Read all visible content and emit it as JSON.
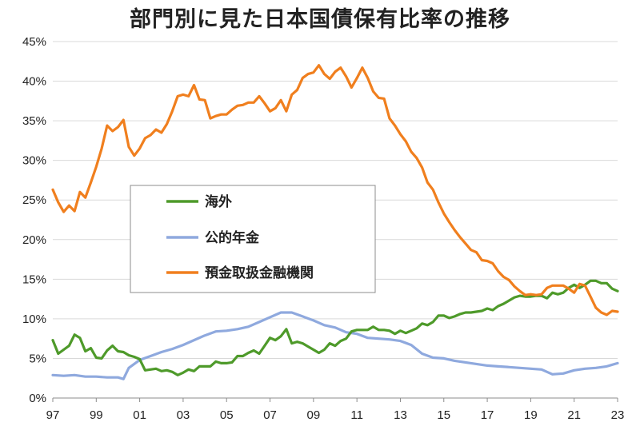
{
  "chart_data": {
    "type": "line",
    "title": "部門別に見た日本国債保有比率の推移",
    "xlabel": "",
    "ylabel": "",
    "x_ticks": [
      "97",
      "99",
      "01",
      "03",
      "05",
      "07",
      "09",
      "11",
      "13",
      "15",
      "17",
      "19",
      "21",
      "23"
    ],
    "y_ticks": [
      "0%",
      "5%",
      "10%",
      "15%",
      "20%",
      "25%",
      "30%",
      "35%",
      "40%",
      "45%"
    ],
    "xlim": [
      1997.0,
      2023.0
    ],
    "ylim": [
      0,
      45
    ],
    "grid": "horizontal",
    "legend_position": "center-left",
    "series": [
      {
        "name": "海外",
        "color": "#4e9a2a",
        "points": [
          [
            1997.0,
            7.3
          ],
          [
            1997.25,
            5.6
          ],
          [
            1997.5,
            6.1
          ],
          [
            1997.75,
            6.6
          ],
          [
            1998.0,
            8.0
          ],
          [
            1998.25,
            7.6
          ],
          [
            1998.5,
            5.9
          ],
          [
            1998.75,
            6.3
          ],
          [
            1999.0,
            5.1
          ],
          [
            1999.25,
            5.0
          ],
          [
            1999.5,
            6.0
          ],
          [
            1999.75,
            6.6
          ],
          [
            2000.0,
            5.9
          ],
          [
            2000.25,
            5.8
          ],
          [
            2000.5,
            5.4
          ],
          [
            2000.75,
            5.2
          ],
          [
            2001.0,
            4.9
          ],
          [
            2001.25,
            3.5
          ],
          [
            2001.5,
            3.6
          ],
          [
            2001.75,
            3.7
          ],
          [
            2002.0,
            3.4
          ],
          [
            2002.25,
            3.5
          ],
          [
            2002.5,
            3.3
          ],
          [
            2002.75,
            2.9
          ],
          [
            2003.0,
            3.2
          ],
          [
            2003.25,
            3.6
          ],
          [
            2003.5,
            3.4
          ],
          [
            2003.75,
            4.0
          ],
          [
            2004.0,
            4.0
          ],
          [
            2004.25,
            4.0
          ],
          [
            2004.5,
            4.6
          ],
          [
            2004.75,
            4.4
          ],
          [
            2005.0,
            4.4
          ],
          [
            2005.25,
            4.5
          ],
          [
            2005.5,
            5.3
          ],
          [
            2005.75,
            5.3
          ],
          [
            2006.0,
            5.7
          ],
          [
            2006.25,
            6.0
          ],
          [
            2006.5,
            5.6
          ],
          [
            2006.75,
            6.6
          ],
          [
            2007.0,
            7.6
          ],
          [
            2007.25,
            7.3
          ],
          [
            2007.5,
            7.8
          ],
          [
            2007.75,
            8.7
          ],
          [
            2008.0,
            6.9
          ],
          [
            2008.25,
            7.1
          ],
          [
            2008.5,
            6.9
          ],
          [
            2008.75,
            6.5
          ],
          [
            2009.0,
            6.1
          ],
          [
            2009.25,
            5.7
          ],
          [
            2009.5,
            6.1
          ],
          [
            2009.75,
            6.9
          ],
          [
            2010.0,
            6.6
          ],
          [
            2010.25,
            7.2
          ],
          [
            2010.5,
            7.5
          ],
          [
            2010.75,
            8.4
          ],
          [
            2011.0,
            8.6
          ],
          [
            2011.25,
            8.6
          ],
          [
            2011.5,
            8.6
          ],
          [
            2011.75,
            9.0
          ],
          [
            2012.0,
            8.6
          ],
          [
            2012.25,
            8.6
          ],
          [
            2012.5,
            8.5
          ],
          [
            2012.75,
            8.1
          ],
          [
            2013.0,
            8.5
          ],
          [
            2013.25,
            8.2
          ],
          [
            2013.5,
            8.5
          ],
          [
            2013.75,
            8.8
          ],
          [
            2014.0,
            9.4
          ],
          [
            2014.25,
            9.2
          ],
          [
            2014.5,
            9.6
          ],
          [
            2014.75,
            10.4
          ],
          [
            2015.0,
            10.4
          ],
          [
            2015.25,
            10.1
          ],
          [
            2015.5,
            10.3
          ],
          [
            2015.75,
            10.6
          ],
          [
            2016.0,
            10.8
          ],
          [
            2016.25,
            10.8
          ],
          [
            2016.5,
            10.9
          ],
          [
            2016.75,
            11.0
          ],
          [
            2017.0,
            11.3
          ],
          [
            2017.25,
            11.1
          ],
          [
            2017.5,
            11.6
          ],
          [
            2017.75,
            11.9
          ],
          [
            2018.0,
            12.3
          ],
          [
            2018.25,
            12.7
          ],
          [
            2018.5,
            12.9
          ],
          [
            2018.75,
            12.8
          ],
          [
            2019.0,
            12.8
          ],
          [
            2019.25,
            12.9
          ],
          [
            2019.5,
            12.9
          ],
          [
            2019.75,
            12.6
          ],
          [
            2020.0,
            13.3
          ],
          [
            2020.25,
            13.1
          ],
          [
            2020.5,
            13.3
          ],
          [
            2020.75,
            13.9
          ],
          [
            2021.0,
            14.3
          ],
          [
            2021.25,
            13.9
          ],
          [
            2021.5,
            14.3
          ],
          [
            2021.75,
            14.8
          ],
          [
            2022.0,
            14.8
          ],
          [
            2022.25,
            14.5
          ],
          [
            2022.5,
            14.5
          ],
          [
            2022.75,
            13.8
          ],
          [
            2023.0,
            13.5
          ]
        ]
      },
      {
        "name": "公的年金",
        "color": "#8fa9de",
        "points": [
          [
            1997.0,
            2.9
          ],
          [
            1997.5,
            2.8
          ],
          [
            1998.0,
            2.9
          ],
          [
            1998.5,
            2.7
          ],
          [
            1999.0,
            2.7
          ],
          [
            1999.5,
            2.6
          ],
          [
            2000.0,
            2.6
          ],
          [
            2000.25,
            2.4
          ],
          [
            2000.5,
            3.8
          ],
          [
            2001.0,
            4.8
          ],
          [
            2001.5,
            5.3
          ],
          [
            2002.0,
            5.8
          ],
          [
            2002.5,
            6.2
          ],
          [
            2003.0,
            6.7
          ],
          [
            2003.5,
            7.3
          ],
          [
            2004.0,
            7.9
          ],
          [
            2004.5,
            8.4
          ],
          [
            2005.0,
            8.5
          ],
          [
            2005.5,
            8.7
          ],
          [
            2006.0,
            9.0
          ],
          [
            2006.5,
            9.6
          ],
          [
            2007.0,
            10.2
          ],
          [
            2007.5,
            10.8
          ],
          [
            2008.0,
            10.8
          ],
          [
            2008.5,
            10.3
          ],
          [
            2009.0,
            9.8
          ],
          [
            2009.5,
            9.2
          ],
          [
            2010.0,
            8.9
          ],
          [
            2010.5,
            8.3
          ],
          [
            2011.0,
            8.1
          ],
          [
            2011.5,
            7.6
          ],
          [
            2012.0,
            7.5
          ],
          [
            2012.5,
            7.4
          ],
          [
            2013.0,
            7.2
          ],
          [
            2013.5,
            6.7
          ],
          [
            2014.0,
            5.6
          ],
          [
            2014.5,
            5.1
          ],
          [
            2015.0,
            5.0
          ],
          [
            2015.5,
            4.7
          ],
          [
            2016.0,
            4.5
          ],
          [
            2016.5,
            4.3
          ],
          [
            2017.0,
            4.1
          ],
          [
            2017.5,
            4.0
          ],
          [
            2018.0,
            3.9
          ],
          [
            2018.5,
            3.8
          ],
          [
            2019.0,
            3.7
          ],
          [
            2019.5,
            3.6
          ],
          [
            2020.0,
            3.0
          ],
          [
            2020.5,
            3.1
          ],
          [
            2021.0,
            3.5
          ],
          [
            2021.5,
            3.7
          ],
          [
            2022.0,
            3.8
          ],
          [
            2022.5,
            4.0
          ],
          [
            2023.0,
            4.4
          ]
        ]
      },
      {
        "name": "預金取扱金融機関",
        "color": "#f07f1e",
        "points": [
          [
            1997.0,
            26.3
          ],
          [
            1997.25,
            24.7
          ],
          [
            1997.5,
            23.5
          ],
          [
            1997.75,
            24.3
          ],
          [
            1998.0,
            23.6
          ],
          [
            1998.25,
            26.0
          ],
          [
            1998.5,
            25.3
          ],
          [
            1998.75,
            27.2
          ],
          [
            1999.0,
            29.2
          ],
          [
            1999.25,
            31.5
          ],
          [
            1999.5,
            34.4
          ],
          [
            1999.75,
            33.7
          ],
          [
            2000.0,
            34.2
          ],
          [
            2000.25,
            35.1
          ],
          [
            2000.5,
            31.7
          ],
          [
            2000.75,
            30.6
          ],
          [
            2001.0,
            31.5
          ],
          [
            2001.25,
            32.8
          ],
          [
            2001.5,
            33.2
          ],
          [
            2001.75,
            33.9
          ],
          [
            2002.0,
            33.5
          ],
          [
            2002.25,
            34.6
          ],
          [
            2002.5,
            36.2
          ],
          [
            2002.75,
            38.1
          ],
          [
            2003.0,
            38.3
          ],
          [
            2003.25,
            38.1
          ],
          [
            2003.5,
            39.5
          ],
          [
            2003.75,
            37.7
          ],
          [
            2004.0,
            37.6
          ],
          [
            2004.25,
            35.3
          ],
          [
            2004.5,
            35.6
          ],
          [
            2004.75,
            35.8
          ],
          [
            2005.0,
            35.8
          ],
          [
            2005.25,
            36.4
          ],
          [
            2005.5,
            36.9
          ],
          [
            2005.75,
            37.0
          ],
          [
            2006.0,
            37.3
          ],
          [
            2006.25,
            37.3
          ],
          [
            2006.5,
            38.1
          ],
          [
            2006.75,
            37.2
          ],
          [
            2007.0,
            36.2
          ],
          [
            2007.25,
            36.6
          ],
          [
            2007.5,
            37.6
          ],
          [
            2007.75,
            36.2
          ],
          [
            2008.0,
            38.3
          ],
          [
            2008.25,
            38.9
          ],
          [
            2008.5,
            40.4
          ],
          [
            2008.75,
            40.9
          ],
          [
            2009.0,
            41.1
          ],
          [
            2009.25,
            42.0
          ],
          [
            2009.5,
            40.9
          ],
          [
            2009.75,
            40.3
          ],
          [
            2010.0,
            41.2
          ],
          [
            2010.25,
            41.7
          ],
          [
            2010.5,
            40.6
          ],
          [
            2010.75,
            39.2
          ],
          [
            2011.0,
            40.4
          ],
          [
            2011.25,
            41.7
          ],
          [
            2011.5,
            40.4
          ],
          [
            2011.75,
            38.7
          ],
          [
            2012.0,
            37.9
          ],
          [
            2012.25,
            37.8
          ],
          [
            2012.5,
            35.3
          ],
          [
            2012.75,
            34.4
          ],
          [
            2013.0,
            33.3
          ],
          [
            2013.25,
            32.4
          ],
          [
            2013.5,
            31.1
          ],
          [
            2013.75,
            30.3
          ],
          [
            2014.0,
            29.1
          ],
          [
            2014.25,
            27.2
          ],
          [
            2014.5,
            26.3
          ],
          [
            2014.75,
            24.7
          ],
          [
            2015.0,
            23.3
          ],
          [
            2015.25,
            22.2
          ],
          [
            2015.5,
            21.2
          ],
          [
            2015.75,
            20.3
          ],
          [
            2016.0,
            19.5
          ],
          [
            2016.25,
            18.7
          ],
          [
            2016.5,
            18.4
          ],
          [
            2016.75,
            17.4
          ],
          [
            2017.0,
            17.3
          ],
          [
            2017.25,
            17.0
          ],
          [
            2017.5,
            16.0
          ],
          [
            2017.75,
            15.3
          ],
          [
            2018.0,
            14.9
          ],
          [
            2018.25,
            14.1
          ],
          [
            2018.5,
            13.5
          ],
          [
            2018.75,
            13.0
          ],
          [
            2019.0,
            13.1
          ],
          [
            2019.25,
            13.0
          ],
          [
            2019.5,
            13.1
          ],
          [
            2019.75,
            13.9
          ],
          [
            2020.0,
            14.2
          ],
          [
            2020.25,
            14.2
          ],
          [
            2020.5,
            14.2
          ],
          [
            2020.75,
            13.8
          ],
          [
            2021.0,
            13.3
          ],
          [
            2021.25,
            14.4
          ],
          [
            2021.5,
            14.2
          ],
          [
            2021.75,
            12.8
          ],
          [
            2022.0,
            11.4
          ],
          [
            2022.25,
            10.8
          ],
          [
            2022.5,
            10.5
          ],
          [
            2022.75,
            11.0
          ],
          [
            2023.0,
            10.9
          ]
        ]
      }
    ]
  }
}
